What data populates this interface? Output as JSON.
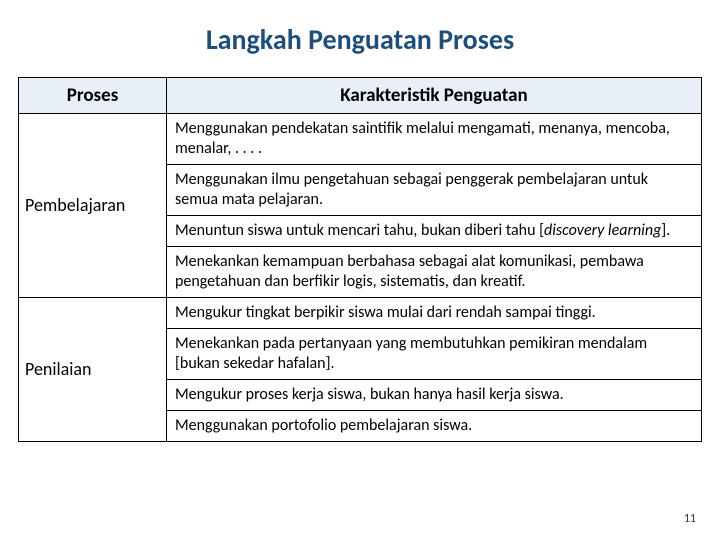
{
  "title": "Langkah Penguatan Proses",
  "header": {
    "col1": "Proses",
    "col2": "Karakteristik Penguatan"
  },
  "sections": [
    {
      "label": "Pembelajaran",
      "rows": [
        "Menggunakan pendekatan saintifik melalui mengamati, menanya, mencoba, menalar, . . . .",
        "Menggunakan ilmu pengetahuan sebagai penggerak pembelajaran untuk semua mata pelajaran.",
        "Menuntun siswa untuk mencari tahu, bukan diberi tahu [<i>discovery learning</i>].",
        "Menekankan kemampuan berbahasa sebagai alat komunikasi, pembawa pengetahuan dan berfikir logis, sistematis, dan kreatif."
      ]
    },
    {
      "label": "Penilaian",
      "rows": [
        "Mengukur tingkat berpikir siswa mulai dari rendah sampai tinggi.",
        "Menekankan pada pertanyaan yang membutuhkan pemikiran mendalam [bukan sekedar hafalan].",
        "Mengukur proses kerja siswa, bukan hanya hasil kerja siswa.",
        "Menggunakan portofolio pembelajaran siswa."
      ]
    }
  ],
  "page_number": "11",
  "colors": {
    "title": "#1f4e79",
    "header_bg": "#e9eff7",
    "border": "#000000",
    "bg": "#ffffff"
  }
}
